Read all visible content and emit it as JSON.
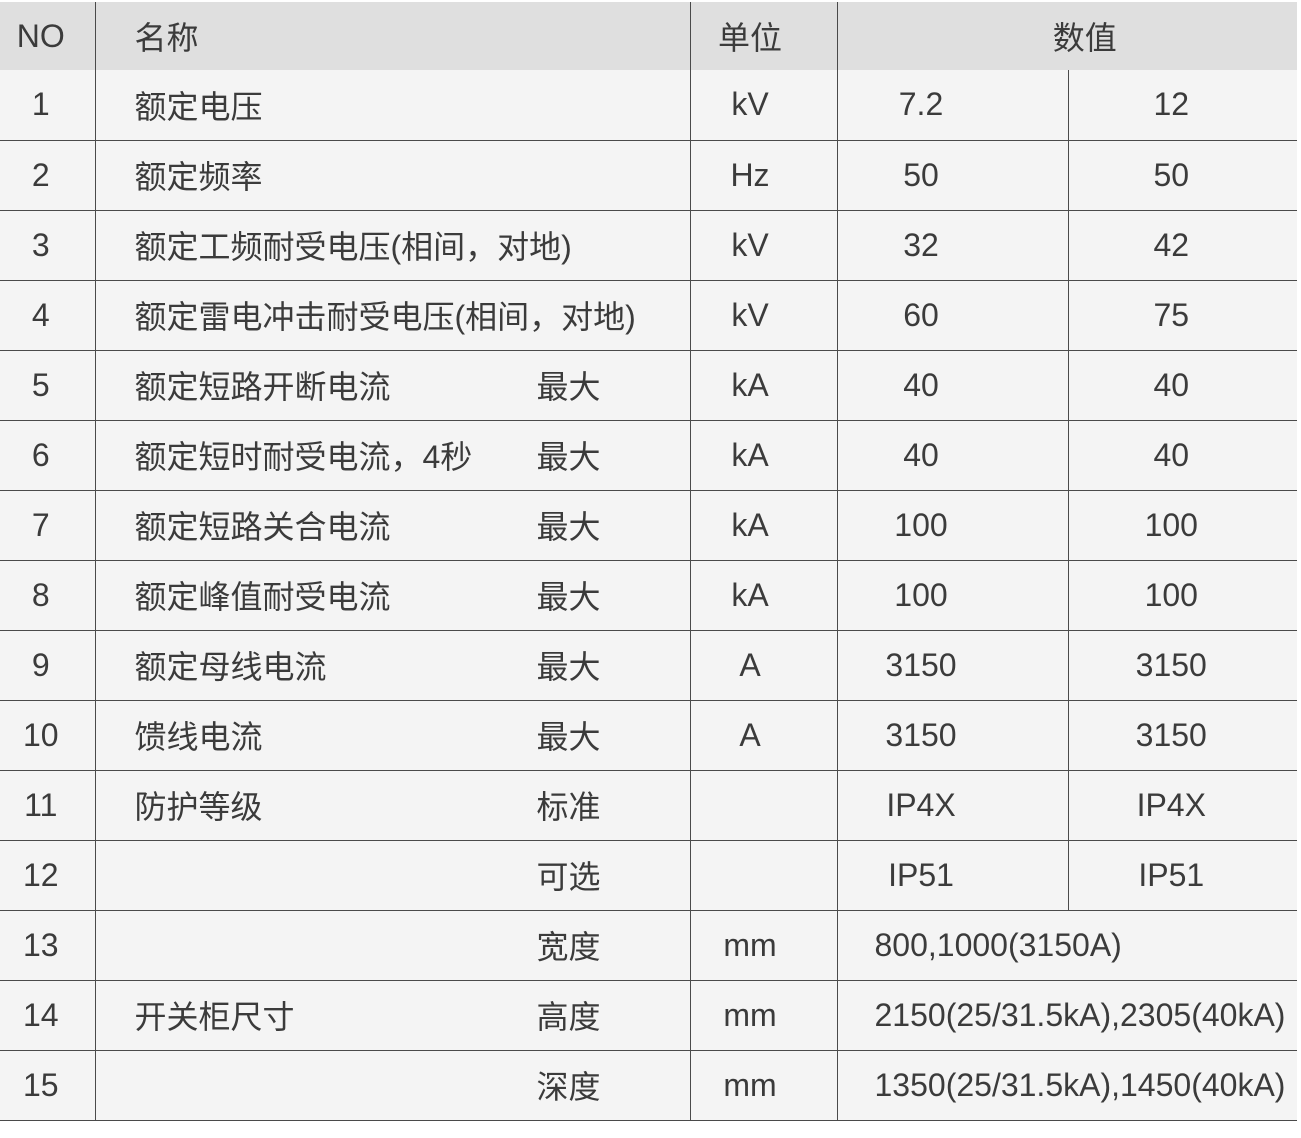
{
  "table": {
    "title_semantics": "switchgear-technical-parameters",
    "headers": {
      "no": "NO",
      "name": "名称",
      "unit": "单位",
      "value": "数值"
    },
    "rows": [
      {
        "no": "1",
        "name": "额定电压",
        "qualifier": "",
        "unit": "kV",
        "v1": "7.2",
        "v2": "12",
        "span": false
      },
      {
        "no": "2",
        "name": "额定频率",
        "qualifier": "",
        "unit": "Hz",
        "v1": "50",
        "v2": "50",
        "span": false
      },
      {
        "no": "3",
        "name": "额定工频耐受电压(相间，对地)",
        "qualifier": "",
        "unit": "kV",
        "v1": "32",
        "v2": "42",
        "span": false
      },
      {
        "no": "4",
        "name": "额定雷电冲击耐受电压(相间，对地)",
        "qualifier": "",
        "unit": "kV",
        "v1": "60",
        "v2": "75",
        "span": false
      },
      {
        "no": "5",
        "name": "额定短路开断电流",
        "qualifier": "最大",
        "unit": "kA",
        "v1": "40",
        "v2": "40",
        "span": false
      },
      {
        "no": "6",
        "name": "额定短时耐受电流，4秒",
        "qualifier": "最大",
        "unit": "kA",
        "v1": "40",
        "v2": "40",
        "span": false
      },
      {
        "no": "7",
        "name": "额定短路关合电流",
        "qualifier": "最大",
        "unit": "kA",
        "v1": "100",
        "v2": "100",
        "span": false
      },
      {
        "no": "8",
        "name": "额定峰值耐受电流",
        "qualifier": "最大",
        "unit": "kA",
        "v1": "100",
        "v2": "100",
        "span": false
      },
      {
        "no": "9",
        "name": "额定母线电流",
        "qualifier": "最大",
        "unit": "A",
        "v1": "3150",
        "v2": "3150",
        "span": false
      },
      {
        "no": "10",
        "name": "馈线电流",
        "qualifier": "最大",
        "unit": "A",
        "v1": "3150",
        "v2": "3150",
        "span": false
      },
      {
        "no": "11",
        "name": "防护等级",
        "qualifier": "标准",
        "unit": "",
        "v1": "IP4X",
        "v2": "IP4X",
        "span": false
      },
      {
        "no": "12",
        "name": "",
        "qualifier": "可选",
        "unit": "",
        "v1": "IP51",
        "v2": "IP51",
        "span": false
      },
      {
        "no": "13",
        "name": "",
        "qualifier": "宽度",
        "unit": "mm",
        "v1": "800,1000(3150A)",
        "v2": "",
        "span": true
      },
      {
        "no": "14",
        "name": "开关柜尺寸",
        "qualifier": "高度",
        "unit": "mm",
        "v1": "2150(25/31.5kA),2305(40kA)",
        "v2": "",
        "span": true
      },
      {
        "no": "15",
        "name": "",
        "qualifier": "深度",
        "unit": "mm",
        "v1": "1350(25/31.5kA),1450(40kA)",
        "v2": "",
        "span": true
      }
    ],
    "colors": {
      "header_bg": "#dfdfdf",
      "row_bg": "#f4f4f4",
      "grid_border": "#4a4a4a",
      "text": "#3b3b3b",
      "gap_bg": "#ffffff"
    }
  }
}
